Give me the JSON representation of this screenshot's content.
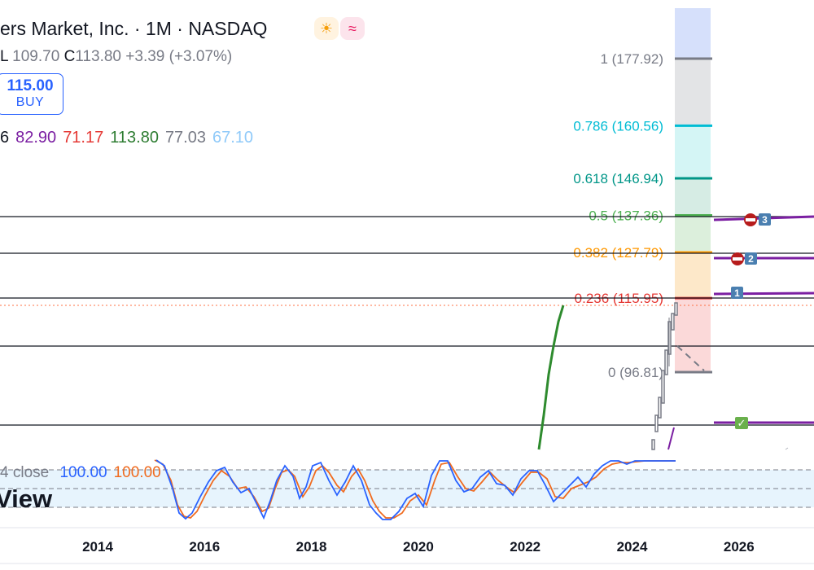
{
  "header": {
    "title": "ers Market, Inc. · 1M · NASDAQ",
    "badges": [
      {
        "icon": "sun-icon",
        "glyph": "☀",
        "bg": "#fff3e0",
        "color": "#f59e0b"
      },
      {
        "icon": "wave-icon",
        "glyph": "≈",
        "bg": "#fce4ec",
        "color": "#e91e63"
      }
    ]
  },
  "ohlc": {
    "low_label": "L",
    "low": "109.70",
    "close_label": "C",
    "close": "113.80",
    "change": "+3.39 (+3.07%)"
  },
  "buy_button": {
    "price": "115.00",
    "label": "BUY"
  },
  "indicator_values": [
    {
      "text": "6",
      "color": "#131722"
    },
    {
      "text": "82.90",
      "color": "#7b1fa2"
    },
    {
      "text": "71.17",
      "color": "#e53935"
    },
    {
      "text": "113.80",
      "color": "#2e7d32"
    },
    {
      "text": "77.03",
      "color": "#787b86"
    },
    {
      "text": "67.10",
      "color": "#90caf9"
    }
  ],
  "stochastic": {
    "label": "4 close",
    "k": "100.00",
    "d": "100.00"
  },
  "watermark": "View",
  "colors": {
    "k_line": "#2962ff",
    "d_line": "#f06b1f",
    "ma_green": "#2e8b2e",
    "position_purple": "#7b1fa2"
  },
  "chart_data": {
    "type": "line",
    "x_axis_ticks": [
      "2014",
      "2016",
      "2018",
      "2020",
      "2022",
      "2024",
      "2026"
    ],
    "fib_levels": [
      {
        "label": "1 (177.92)",
        "value": 177.92,
        "color": "#787b86",
        "zone": "#e3e4e6"
      },
      {
        "label": "0.786 (160.56)",
        "value": 160.56,
        "color": "#00bcd4",
        "zone": "#d4f5f5"
      },
      {
        "label": "0.618 (146.94)",
        "value": 146.94,
        "color": "#009688",
        "zone": "#d6ece4"
      },
      {
        "label": "0.5 (137.36)",
        "value": 137.36,
        "color": "#4caf50",
        "zone": "#dcefdc"
      },
      {
        "label": "0.382 (127.79)",
        "value": 127.79,
        "color": "#ff9800",
        "zone": "#fde8c9"
      },
      {
        "label": "0.236 (115.95)",
        "value": 115.95,
        "color": "#e53935",
        "zone": "#fbd9d9"
      },
      {
        "label": "0 (96.81)",
        "value": 96.81,
        "color": "#787b86",
        "zone": null
      }
    ],
    "top_zone_color": "#d6e0fb",
    "markers": [
      {
        "kind": "number",
        "text": "3"
      },
      {
        "kind": "number",
        "text": "2"
      },
      {
        "kind": "number",
        "text": "1"
      },
      {
        "kind": "check",
        "text": "✓"
      }
    ]
  }
}
